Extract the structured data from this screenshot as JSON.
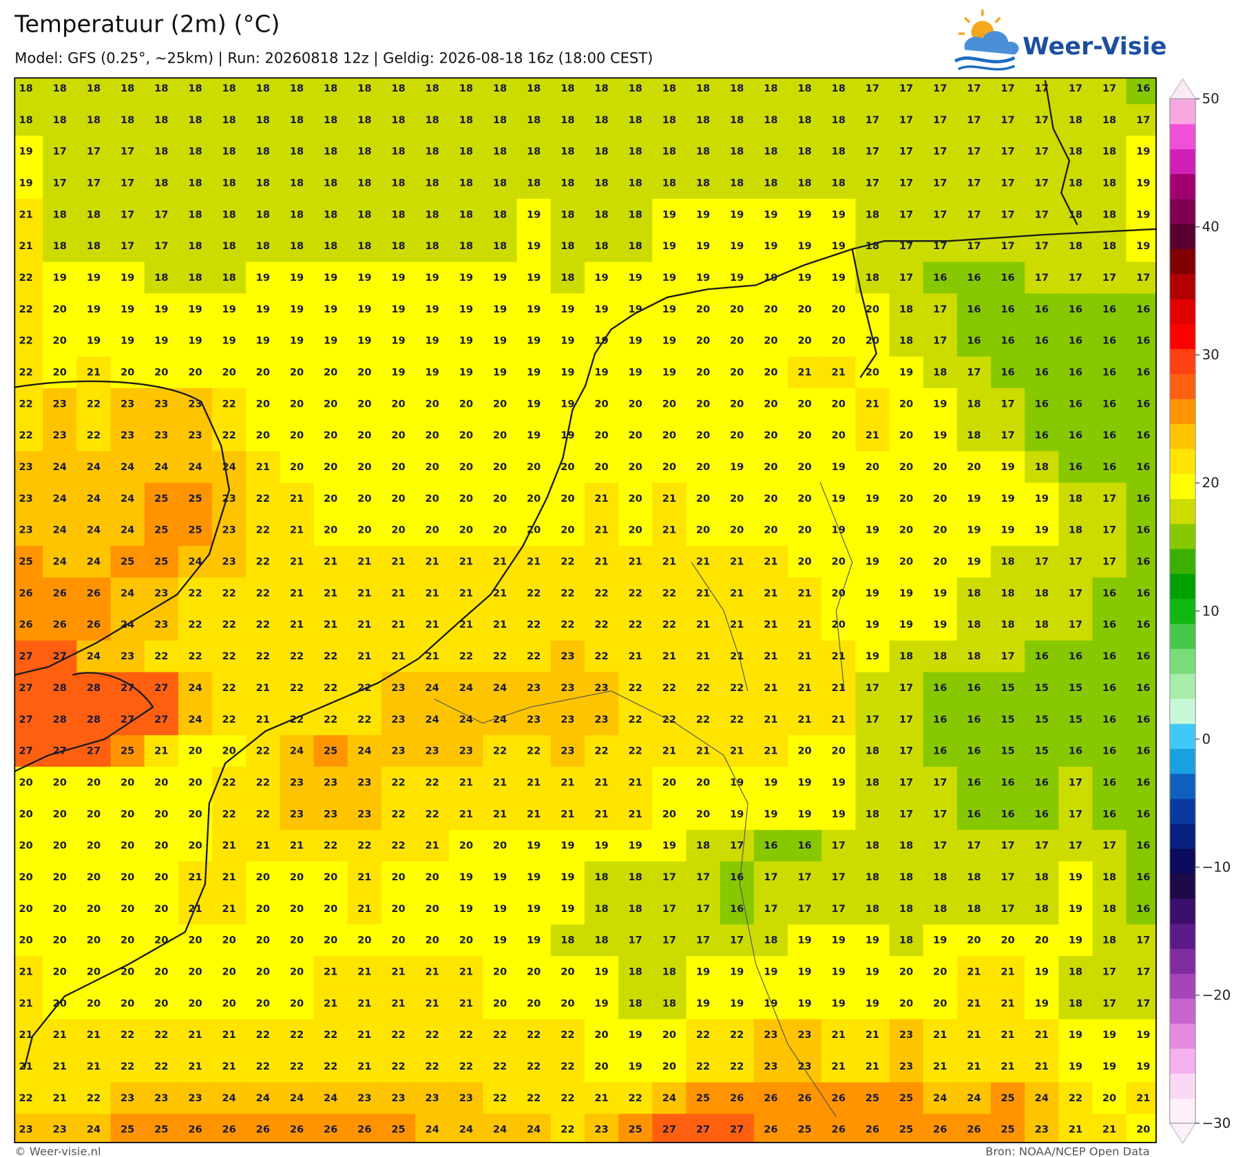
{
  "map": {
    "title": "Temperatuur (2m) (°C)",
    "subtitle": "Model: GFS (0.25°, ~25km)  |  Run: 20260818 12z  |  Geldig: 2026-08-18 16z (18:00 CEST)",
    "logo": "Weer-Visie",
    "footer_left": "© Weer-visie.nl",
    "footer_right": "Bron: NOAA/NCEP Open Data",
    "values": [
      [
        18,
        18,
        18,
        18,
        18,
        18,
        18,
        18,
        18,
        18,
        18,
        18,
        18,
        18,
        18,
        18,
        18,
        18,
        18,
        18,
        18,
        18,
        18,
        18,
        18,
        17,
        17,
        17,
        17,
        17,
        17,
        17,
        17,
        16
      ],
      [
        18,
        18,
        18,
        18,
        18,
        18,
        18,
        18,
        18,
        18,
        18,
        18,
        18,
        18,
        18,
        18,
        18,
        18,
        18,
        18,
        18,
        18,
        18,
        18,
        18,
        17,
        17,
        17,
        17,
        17,
        17,
        18,
        18,
        17
      ],
      [
        19,
        17,
        17,
        17,
        18,
        18,
        18,
        18,
        18,
        18,
        18,
        18,
        18,
        18,
        18,
        18,
        18,
        18,
        18,
        18,
        18,
        18,
        18,
        18,
        18,
        17,
        17,
        17,
        17,
        17,
        17,
        18,
        18,
        19
      ],
      [
        19,
        17,
        17,
        17,
        18,
        18,
        18,
        18,
        18,
        18,
        18,
        18,
        18,
        18,
        18,
        18,
        18,
        18,
        18,
        18,
        18,
        18,
        18,
        18,
        18,
        17,
        17,
        17,
        17,
        17,
        17,
        18,
        18,
        19
      ],
      [
        21,
        18,
        18,
        17,
        17,
        18,
        18,
        18,
        18,
        18,
        18,
        18,
        18,
        18,
        18,
        19,
        18,
        18,
        18,
        19,
        19,
        19,
        19,
        19,
        19,
        18,
        17,
        17,
        17,
        17,
        17,
        18,
        18,
        19
      ],
      [
        21,
        18,
        18,
        17,
        17,
        18,
        18,
        18,
        18,
        18,
        18,
        18,
        18,
        18,
        18,
        19,
        18,
        18,
        18,
        19,
        19,
        19,
        19,
        19,
        19,
        18,
        17,
        17,
        17,
        17,
        17,
        18,
        18,
        19
      ],
      [
        22,
        19,
        19,
        19,
        18,
        18,
        18,
        19,
        19,
        19,
        19,
        19,
        19,
        19,
        19,
        19,
        18,
        19,
        19,
        19,
        19,
        19,
        19,
        19,
        19,
        18,
        17,
        16,
        16,
        16,
        17,
        17,
        17,
        17
      ],
      [
        22,
        20,
        19,
        19,
        19,
        19,
        19,
        19,
        19,
        19,
        19,
        19,
        19,
        19,
        19,
        19,
        19,
        19,
        19,
        19,
        20,
        20,
        20,
        20,
        20,
        20,
        18,
        17,
        16,
        16,
        16,
        16,
        16,
        16
      ],
      [
        22,
        20,
        19,
        19,
        19,
        19,
        19,
        19,
        19,
        19,
        19,
        19,
        19,
        19,
        19,
        19,
        19,
        19,
        19,
        19,
        20,
        20,
        20,
        20,
        20,
        20,
        18,
        17,
        16,
        16,
        16,
        16,
        16,
        16
      ],
      [
        22,
        20,
        21,
        20,
        20,
        20,
        20,
        20,
        20,
        20,
        20,
        19,
        19,
        19,
        19,
        19,
        19,
        19,
        19,
        19,
        20,
        20,
        20,
        21,
        21,
        20,
        19,
        18,
        17,
        16,
        16,
        16,
        16,
        16
      ],
      [
        22,
        23,
        22,
        23,
        23,
        23,
        22,
        20,
        20,
        20,
        20,
        20,
        20,
        20,
        20,
        19,
        19,
        20,
        20,
        20,
        20,
        20,
        20,
        20,
        20,
        21,
        20,
        19,
        18,
        17,
        16,
        16,
        16,
        16
      ],
      [
        22,
        23,
        22,
        23,
        23,
        23,
        22,
        20,
        20,
        20,
        20,
        20,
        20,
        20,
        20,
        19,
        19,
        20,
        20,
        20,
        20,
        20,
        20,
        20,
        20,
        21,
        20,
        19,
        18,
        17,
        16,
        16,
        16,
        16
      ],
      [
        23,
        24,
        24,
        24,
        24,
        24,
        24,
        21,
        20,
        20,
        20,
        20,
        20,
        20,
        20,
        20,
        20,
        20,
        20,
        20,
        20,
        19,
        20,
        20,
        19,
        20,
        20,
        20,
        20,
        19,
        18,
        16,
        16,
        16
      ],
      [
        23,
        24,
        24,
        24,
        25,
        25,
        23,
        22,
        21,
        20,
        20,
        20,
        20,
        20,
        20,
        20,
        20,
        21,
        20,
        21,
        20,
        20,
        20,
        20,
        19,
        19,
        20,
        20,
        19,
        19,
        19,
        18,
        17,
        16
      ],
      [
        23,
        24,
        24,
        24,
        25,
        25,
        23,
        22,
        21,
        20,
        20,
        20,
        20,
        20,
        20,
        20,
        20,
        21,
        20,
        21,
        20,
        20,
        20,
        20,
        19,
        19,
        20,
        20,
        19,
        19,
        19,
        18,
        17,
        16
      ],
      [
        25,
        24,
        24,
        25,
        25,
        24,
        23,
        22,
        21,
        21,
        21,
        21,
        21,
        21,
        21,
        21,
        22,
        21,
        21,
        21,
        21,
        21,
        21,
        20,
        20,
        19,
        20,
        20,
        19,
        18,
        17,
        17,
        17,
        16
      ],
      [
        26,
        26,
        26,
        24,
        23,
        22,
        22,
        22,
        21,
        21,
        21,
        21,
        21,
        21,
        21,
        22,
        22,
        22,
        22,
        22,
        21,
        21,
        21,
        21,
        20,
        19,
        19,
        19,
        18,
        18,
        18,
        17,
        16,
        16
      ],
      [
        26,
        26,
        26,
        24,
        23,
        22,
        22,
        22,
        21,
        21,
        21,
        21,
        21,
        21,
        21,
        22,
        22,
        22,
        22,
        22,
        21,
        21,
        21,
        21,
        20,
        19,
        19,
        19,
        18,
        18,
        18,
        17,
        16,
        16
      ],
      [
        27,
        27,
        24,
        23,
        22,
        22,
        22,
        22,
        22,
        22,
        21,
        21,
        21,
        22,
        22,
        22,
        23,
        22,
        21,
        21,
        21,
        21,
        21,
        21,
        21,
        19,
        18,
        18,
        18,
        17,
        16,
        16,
        16,
        16
      ],
      [
        27,
        28,
        28,
        27,
        27,
        24,
        22,
        21,
        22,
        22,
        22,
        23,
        24,
        24,
        24,
        23,
        23,
        23,
        22,
        22,
        22,
        22,
        21,
        21,
        21,
        17,
        17,
        16,
        16,
        15,
        15,
        15,
        16,
        16
      ],
      [
        27,
        28,
        28,
        27,
        27,
        24,
        22,
        21,
        22,
        22,
        22,
        23,
        24,
        24,
        24,
        23,
        23,
        23,
        22,
        22,
        22,
        22,
        21,
        21,
        21,
        17,
        17,
        16,
        16,
        15,
        15,
        15,
        16,
        16
      ],
      [
        27,
        27,
        27,
        25,
        21,
        20,
        20,
        22,
        24,
        25,
        24,
        23,
        23,
        23,
        22,
        22,
        23,
        22,
        22,
        21,
        21,
        21,
        21,
        20,
        20,
        18,
        17,
        16,
        16,
        15,
        15,
        16,
        16,
        16
      ],
      [
        20,
        20,
        20,
        20,
        20,
        20,
        22,
        22,
        23,
        23,
        23,
        22,
        22,
        21,
        21,
        21,
        21,
        21,
        21,
        20,
        20,
        19,
        19,
        19,
        19,
        18,
        17,
        17,
        16,
        16,
        16,
        17,
        16,
        16
      ],
      [
        20,
        20,
        20,
        20,
        20,
        20,
        22,
        22,
        23,
        23,
        23,
        22,
        22,
        21,
        21,
        21,
        21,
        21,
        21,
        20,
        20,
        19,
        19,
        19,
        19,
        18,
        17,
        17,
        16,
        16,
        16,
        17,
        16,
        16
      ],
      [
        20,
        20,
        20,
        20,
        20,
        20,
        21,
        21,
        21,
        22,
        22,
        22,
        21,
        20,
        20,
        19,
        19,
        19,
        19,
        19,
        18,
        17,
        16,
        16,
        17,
        18,
        18,
        17,
        17,
        17,
        17,
        17,
        17,
        16
      ],
      [
        20,
        20,
        20,
        20,
        20,
        21,
        21,
        20,
        20,
        20,
        21,
        20,
        20,
        19,
        19,
        19,
        19,
        18,
        18,
        17,
        17,
        16,
        17,
        17,
        17,
        18,
        18,
        18,
        18,
        17,
        18,
        19,
        18,
        16
      ],
      [
        20,
        20,
        20,
        20,
        20,
        21,
        21,
        20,
        20,
        20,
        21,
        20,
        20,
        19,
        19,
        19,
        19,
        18,
        18,
        17,
        17,
        16,
        17,
        17,
        17,
        18,
        18,
        18,
        18,
        17,
        18,
        19,
        18,
        16
      ],
      [
        20,
        20,
        20,
        20,
        20,
        20,
        20,
        20,
        20,
        20,
        20,
        20,
        20,
        20,
        19,
        19,
        18,
        18,
        17,
        17,
        17,
        17,
        18,
        19,
        19,
        19,
        18,
        19,
        20,
        20,
        20,
        19,
        18,
        17
      ],
      [
        21,
        20,
        20,
        20,
        20,
        20,
        20,
        20,
        20,
        21,
        21,
        21,
        21,
        21,
        20,
        20,
        20,
        19,
        18,
        18,
        19,
        19,
        19,
        19,
        19,
        19,
        20,
        20,
        21,
        21,
        19,
        18,
        17,
        17
      ],
      [
        21,
        20,
        20,
        20,
        20,
        20,
        20,
        20,
        20,
        21,
        21,
        21,
        21,
        21,
        20,
        20,
        20,
        19,
        18,
        18,
        19,
        19,
        19,
        19,
        19,
        19,
        20,
        20,
        21,
        21,
        19,
        18,
        17,
        17
      ],
      [
        21,
        21,
        21,
        22,
        22,
        21,
        21,
        22,
        22,
        22,
        21,
        22,
        22,
        22,
        22,
        22,
        22,
        20,
        19,
        20,
        22,
        22,
        23,
        23,
        21,
        21,
        23,
        21,
        21,
        21,
        21,
        19,
        19,
        19
      ],
      [
        21,
        21,
        21,
        22,
        22,
        21,
        21,
        22,
        22,
        22,
        21,
        22,
        22,
        22,
        22,
        22,
        22,
        20,
        19,
        20,
        22,
        22,
        23,
        23,
        21,
        21,
        23,
        21,
        21,
        21,
        21,
        19,
        19,
        19
      ],
      [
        22,
        21,
        22,
        23,
        23,
        23,
        24,
        24,
        24,
        24,
        23,
        23,
        23,
        23,
        22,
        22,
        22,
        21,
        22,
        24,
        25,
        26,
        26,
        26,
        26,
        25,
        25,
        24,
        24,
        25,
        24,
        22,
        20,
        21
      ],
      [
        23,
        23,
        24,
        25,
        25,
        26,
        26,
        26,
        26,
        26,
        26,
        25,
        24,
        24,
        24,
        24,
        22,
        23,
        25,
        27,
        27,
        27,
        26,
        25,
        26,
        26,
        25,
        26,
        26,
        25,
        23,
        21,
        21,
        20
      ]
    ],
    "colorbar": {
      "lim": [
        -30,
        50
      ],
      "ticks": [
        50,
        40,
        30,
        20,
        10,
        0,
        {
          "value": -10,
          "label": "−10"
        },
        {
          "value": -20,
          "label": "−20"
        },
        {
          "value": -30,
          "label": "−30"
        }
      ],
      "colors": [
        "#fdf0fb",
        "#fbd9f5",
        "#f5b0ee",
        "#e68ae0",
        "#c865cc",
        "#a645b8",
        "#7f2ca0",
        "#5a1a8a",
        "#3a0e6a",
        "#1e0a48",
        "#0c0a5a",
        "#08207e",
        "#0a3aa0",
        "#1060c0",
        "#18a0e0",
        "#40c8f8",
        "#c8f8d8",
        "#a8ecaa",
        "#78dc78",
        "#48c848",
        "#10b810",
        "#00a000",
        "#3cb000",
        "#88c800",
        "#cddc00",
        "#ffff00",
        "#ffe400",
        "#ffc400",
        "#ff9400",
        "#ff6010",
        "#ff4010",
        "#ff0000",
        "#e00000",
        "#b00000",
        "#800000",
        "#580030",
        "#800050",
        "#a00070",
        "#d020b8",
        "#f050d8",
        "#f8a8e0"
      ],
      "over_color": "#fde8f5",
      "under_color": "#fdf0fb"
    }
  }
}
